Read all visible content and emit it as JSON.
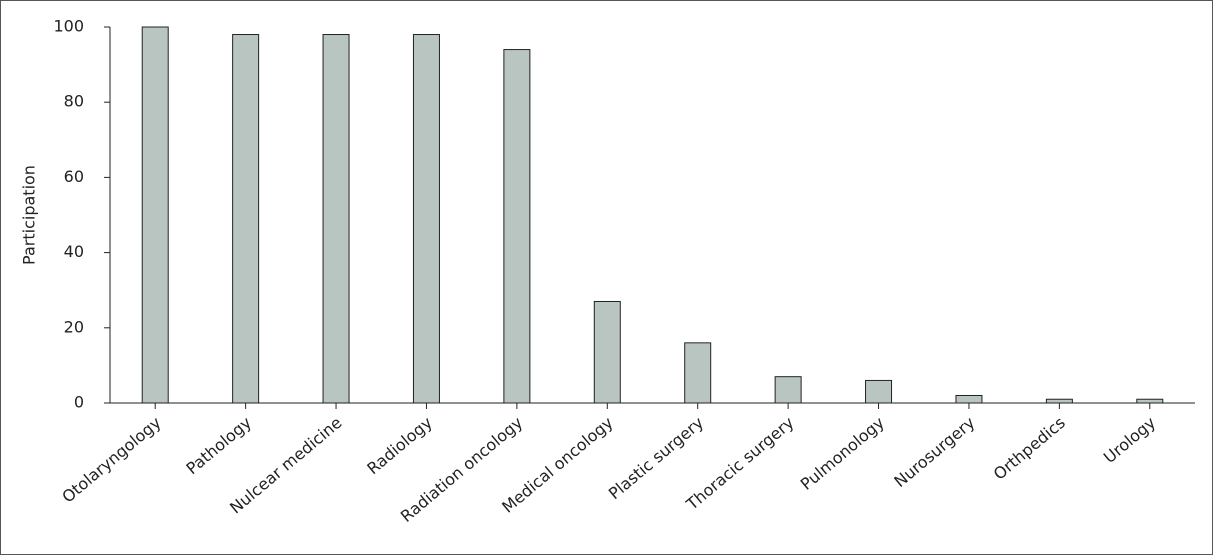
{
  "chart_data": {
    "type": "bar",
    "ylabel": "Participation",
    "categories": [
      "Otolaryngology",
      "Pathology",
      "Nulcear medicine",
      "Radiology",
      "Radiation oncology",
      "Medical oncology",
      "Plastic surgery",
      "Thoracic surgery",
      "Pulmonology",
      "Nurosurgery",
      "Orthpedics",
      "Urology"
    ],
    "values": [
      100,
      98,
      98,
      98,
      94,
      27,
      16,
      7,
      6,
      2,
      1,
      1
    ],
    "color": "#b9c5c0",
    "ylim": [
      0,
      100
    ],
    "yticks": [
      0,
      20,
      40,
      60,
      80,
      100
    ],
    "grid": false
  }
}
